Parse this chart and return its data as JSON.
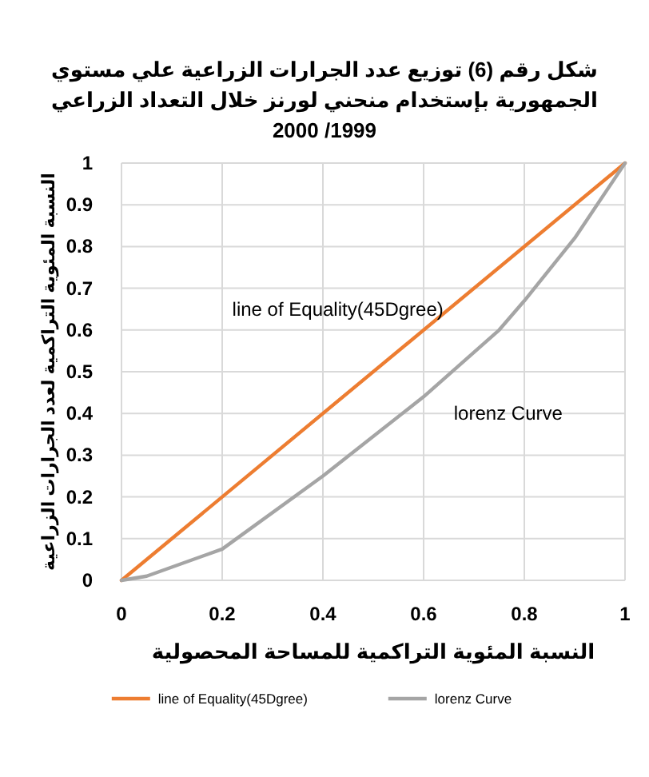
{
  "chart_data": {
    "type": "line",
    "title": "شكل رقم (6) توزيع عدد الجرارات الزراعية علي مستوي\nالجمهورية بإستخدام منحني لورنز خلال التعداد الزراعي\n2000 /1999",
    "xlabel": "النسبة المئوية  التراكمية للمساحة المحصولية",
    "ylabel": "النسبة المئوية التراكمية لعدد الجرارات الزراعية",
    "series": [
      {
        "name": "line of Equality(45Dgree)",
        "color": "#ed7d31",
        "x": [
          0,
          1
        ],
        "values": [
          0,
          1
        ]
      },
      {
        "name": "lorenz Curve",
        "color": "#a5a5a5",
        "x": [
          0,
          0.05,
          0.2,
          0.4,
          0.6,
          0.75,
          0.8,
          0.9,
          1
        ],
        "values": [
          0,
          0.01,
          0.075,
          0.25,
          0.44,
          0.6,
          0.67,
          0.82,
          1
        ]
      }
    ],
    "annotations": [
      "line of Equality(45Dgree)",
      "lorenz Curve"
    ],
    "xlim": [
      0,
      1
    ],
    "xticks": [
      0,
      0.2,
      0.4,
      0.6,
      0.8,
      1
    ],
    "ylim": [
      0,
      1
    ],
    "yticks": [
      0,
      0.1,
      0.2,
      0.3,
      0.4,
      0.5,
      0.6,
      0.7,
      0.8,
      0.9,
      1
    ],
    "grid": true,
    "legend": "bottom",
    "marker": "none",
    "line_style": "solid"
  }
}
